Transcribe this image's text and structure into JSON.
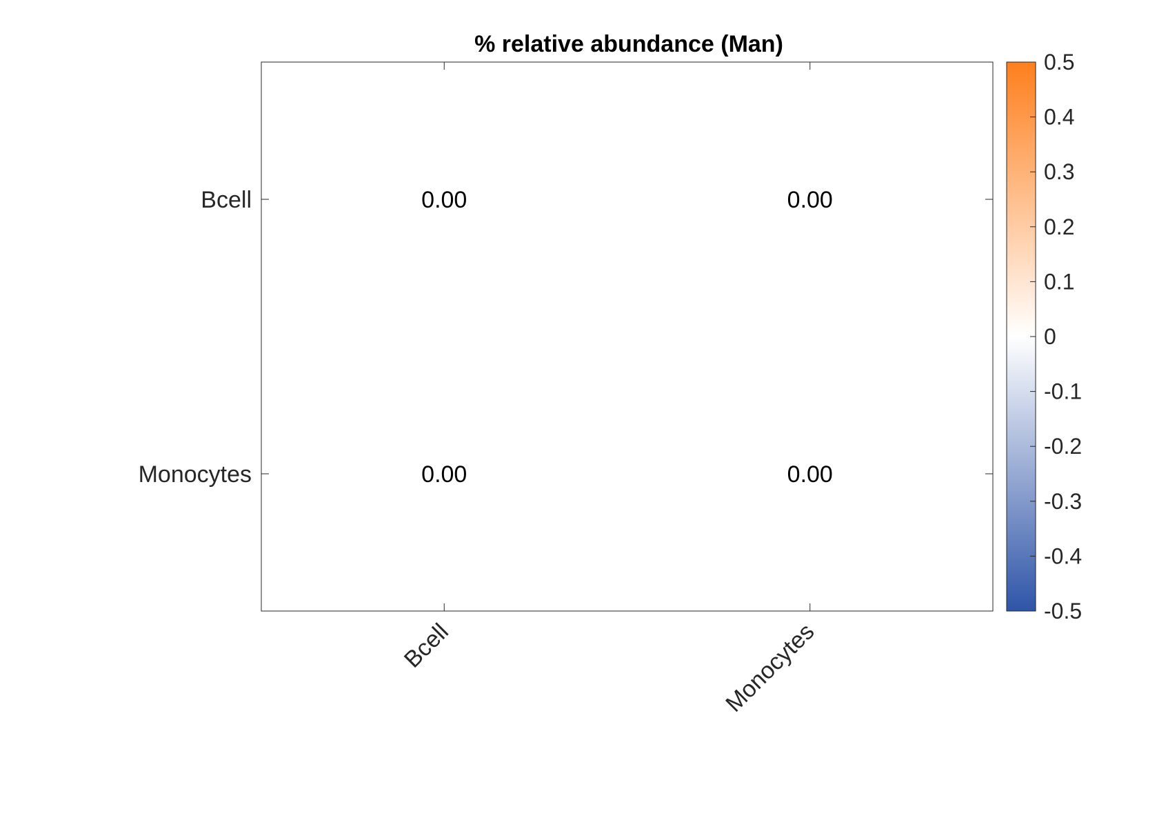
{
  "chart_data": {
    "type": "heatmap",
    "title": "% relative abundance (Man)",
    "x_categories": [
      "Bcell",
      "Monocytes"
    ],
    "y_categories": [
      "Bcell",
      "Monocytes"
    ],
    "values": [
      [
        0.0,
        0.0
      ],
      [
        0.0,
        0.0
      ]
    ],
    "value_labels": [
      [
        "0.00",
        "0.00"
      ],
      [
        "0.00",
        "0.00"
      ]
    ],
    "colorbar": {
      "range": [
        -0.5,
        0.5
      ],
      "ticks": [
        0.5,
        0.4,
        0.3,
        0.2,
        0.1,
        0,
        -0.1,
        -0.2,
        -0.3,
        -0.4,
        -0.5
      ],
      "tick_labels": [
        "0.5",
        "0.4",
        "0.3",
        "0.2",
        "0.1",
        "0",
        "-0.1",
        "-0.2",
        "-0.3",
        "-0.4",
        "-0.5"
      ],
      "low_color": "#2f55a8",
      "mid_color": "#ffffff",
      "high_color": "#fe7f1d"
    },
    "grid": false,
    "colorbar_position": "right"
  }
}
